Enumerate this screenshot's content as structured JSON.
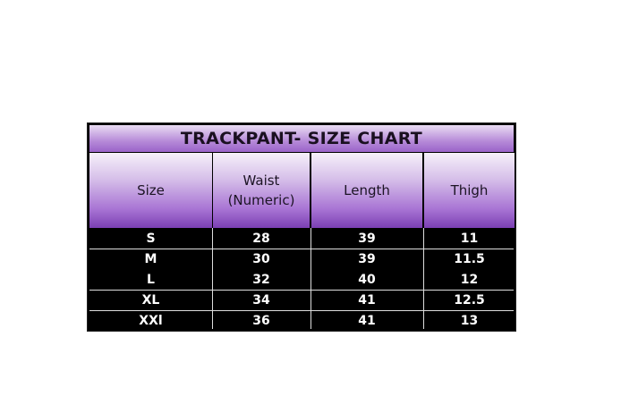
{
  "title": "TRACKPANT- SIZE CHART",
  "headers": [
    "Size",
    "Waist\n(Numeric)",
    "Length",
    "Thigh"
  ],
  "rows": [
    [
      "S",
      "28",
      "39",
      "11"
    ],
    [
      "M",
      "30",
      "39",
      "11.5"
    ],
    [
      "L",
      "32",
      "40",
      "12"
    ],
    [
      "XL",
      "34",
      "41",
      "12.5"
    ],
    [
      "XXl",
      "36",
      "41",
      "13"
    ]
  ],
  "colors": {
    "header_purple": "#7b3fb3",
    "row_background": "#000000",
    "row_text": "#ffffff"
  }
}
